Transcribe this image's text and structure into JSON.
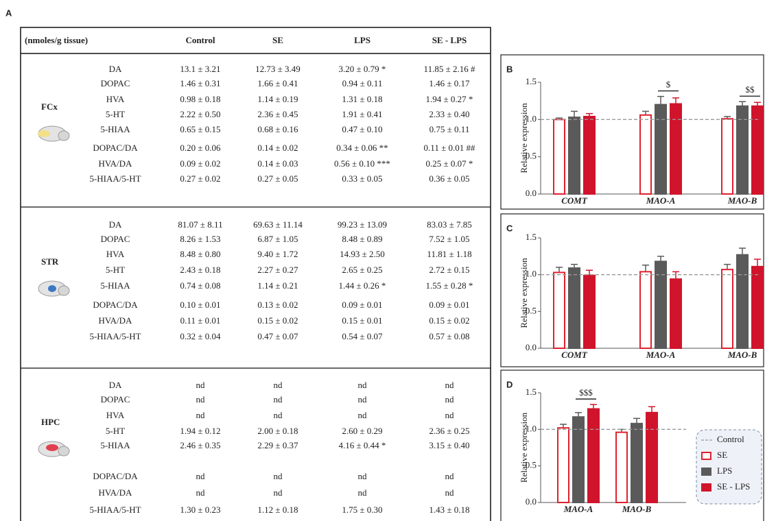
{
  "panel_label": "A",
  "table": {
    "corner": "(nmoles/g tissue)",
    "columns": [
      "Control",
      "SE",
      "LPS",
      "SE - LPS"
    ],
    "sections": [
      {
        "label": "FCx",
        "rows": [
          [
            "DA",
            "13.1 ± 3.21",
            "12.73 ± 3.49",
            "3.20 ± 0.79 *",
            "11.85 ± 2.16 #"
          ],
          [
            "DOPAC",
            "1.46 ± 0.31",
            "1.66 ± 0.41",
            "0.94 ± 0.11",
            "1.46 ± 0.17"
          ],
          [
            "HVA",
            "0.98 ± 0.18",
            "1.14 ± 0.19",
            "1.31 ± 0.18",
            "1.94 ± 0.27 *"
          ],
          [
            "5-HT",
            "2.22 ± 0.50",
            "2.36 ± 0.45",
            "1.91 ± 0.41",
            "2.33 ± 0.40"
          ],
          [
            "5-HIAA",
            "0.65 ± 0.15",
            "0.68 ± 0.16",
            "0.47 ± 0.10",
            "0.75 ± 0.11"
          ],
          [
            "DOPAC/DA",
            "0.20 ± 0.06",
            "0.14 ± 0.02",
            "0.34 ± 0.06 **",
            "0.11 ± 0.01 ##"
          ],
          [
            "HVA/DA",
            "0.09 ± 0.02",
            "0.14 ± 0.03",
            "0.56 ± 0.10 ***",
            "0.25 ± 0.07 *"
          ],
          [
            "5-HIAA/5-HT",
            "0.27 ± 0.02",
            "0.27 ± 0.05",
            "0.33 ± 0.05",
            "0.36 ± 0.05"
          ]
        ]
      },
      {
        "label": "STR",
        "rows": [
          [
            "DA",
            "81.07 ± 8.11",
            "69.63 ± 11.14",
            "99.23 ± 13.09",
            "83.03 ± 7.85"
          ],
          [
            "DOPAC",
            "8.26 ± 1.53",
            "6.87 ± 1.05",
            "8.48 ± 0.89",
            "7.52 ± 1.05"
          ],
          [
            "HVA",
            "8.48 ± 0.80",
            "9.40 ± 1.72",
            "14.93 ± 2.50",
            "11.81 ± 1.18"
          ],
          [
            "5-HT",
            "2.43 ± 0.18",
            "2.27 ± 0.27",
            "2.65 ± 0.25",
            "2.72 ± 0.15"
          ],
          [
            "5-HIAA",
            "0.74 ± 0.08",
            "1.14 ± 0.21",
            "1.44 ± 0.26 *",
            "1.55 ± 0.28 *"
          ],
          [
            "DOPAC/DA",
            "0.10 ± 0.01",
            "0.13 ± 0.02",
            "0.09 ± 0.01",
            "0.09 ± 0.01"
          ],
          [
            "HVA/DA",
            "0.11 ± 0.01",
            "0.15 ± 0.02",
            "0.15 ± 0.01",
            "0.15 ± 0.02"
          ],
          [
            "5-HIAA/5-HT",
            "0.32 ± 0.04",
            "0.47 ± 0.07",
            "0.54 ± 0.07",
            "0.57 ± 0.08"
          ]
        ]
      },
      {
        "label": "HPC",
        "rows": [
          [
            "DA",
            "nd",
            "nd",
            "nd",
            "nd"
          ],
          [
            "DOPAC",
            "nd",
            "nd",
            "nd",
            "nd"
          ],
          [
            "HVA",
            "nd",
            "nd",
            "nd",
            "nd"
          ],
          [
            "5-HT",
            "1.94 ± 0.12",
            "2.00 ± 0.18",
            "2.60 ± 0.29",
            "2.36 ± 0.25"
          ],
          [
            "5-HIAA",
            "2.46 ± 0.35",
            "2.29 ± 0.37",
            "4.16 ± 0.44 *",
            "3.15 ± 0.40"
          ],
          [
            "DOPAC/DA",
            "nd",
            "nd",
            "nd",
            "nd"
          ],
          [
            "HVA/DA",
            "nd",
            "nd",
            "nd",
            "nd"
          ],
          [
            "5-HIAA/5-HT",
            "1.30 ± 0.23",
            "1.12 ± 0.18",
            "1.75 ± 0.30",
            "1.43 ± 0.18"
          ]
        ]
      }
    ]
  },
  "chart_data": [
    {
      "type": "bar",
      "panel_label": "B",
      "y_label": "Relative expression",
      "categories": [
        "COMT",
        "MAO-A",
        "MAO-B"
      ],
      "series": [
        {
          "color": "#e0202e",
          "fill": "#ffffff",
          "values": [
            1.0,
            1.06,
            1.01
          ],
          "errors": [
            0.02,
            0.05,
            0.03
          ]
        },
        {
          "color": "#5a5a5a",
          "fill": "#5a5a5a",
          "values": [
            1.03,
            1.2,
            1.18
          ],
          "errors": [
            0.08,
            0.11,
            0.06
          ]
        },
        {
          "color": "#d0142c",
          "fill": "#d0142c",
          "values": [
            1.04,
            1.21,
            1.18
          ],
          "errors": [
            0.04,
            0.08,
            0.05
          ]
        }
      ],
      "ylim": [
        0,
        1.5
      ],
      "yticks": [
        {
          "value": 0,
          "label": "0.0"
        },
        0.5,
        {
          "value": 1,
          "label": "1.0"
        },
        1.5
      ],
      "reference_value": 1,
      "annotations": [
        {
          "text": "$"
        },
        {
          "text": "$$"
        }
      ]
    },
    {
      "type": "bar",
      "panel_label": "C",
      "y_label": "Relative expression",
      "categories": [
        "COMT",
        "MAO-A",
        "MAO-B"
      ],
      "series": [
        {
          "color": "#e0202e",
          "fill": "#ffffff",
          "values": [
            1.03,
            1.04,
            1.07
          ],
          "errors": [
            0.07,
            0.09,
            0.07
          ]
        },
        {
          "color": "#5a5a5a",
          "fill": "#5a5a5a",
          "values": [
            1.09,
            1.18,
            1.27
          ],
          "errors": [
            0.05,
            0.07,
            0.09
          ]
        },
        {
          "color": "#d0142c",
          "fill": "#d0142c",
          "values": [
            0.99,
            0.94,
            1.11
          ],
          "errors": [
            0.07,
            0.1,
            0.1
          ]
        }
      ],
      "ylim": [
        0,
        1.5
      ],
      "yticks": [
        {
          "value": 0,
          "label": "0.0"
        },
        0.5,
        {
          "value": 1,
          "label": "1.0"
        },
        1.5
      ],
      "reference_value": 1
    },
    {
      "type": "bar",
      "panel_label": "D",
      "y_label": "Relative expression",
      "categories": [
        "MAO-A",
        "MAO-B"
      ],
      "series": [
        {
          "name": "SE",
          "color": "#e0202e",
          "fill": "#ffffff",
          "values": [
            1.02,
            0.96
          ],
          "errors": [
            0.05,
            0.04
          ]
        },
        {
          "name": "LPS",
          "color": "#5a5a5a",
          "fill": "#5a5a5a",
          "values": [
            1.17,
            1.08
          ],
          "errors": [
            0.06,
            0.07
          ]
        },
        {
          "name": "SE - LPS",
          "color": "#d0142c",
          "fill": "#d0142c",
          "values": [
            1.28,
            1.23
          ],
          "errors": [
            0.06,
            0.08
          ]
        }
      ],
      "ylim": [
        0,
        1.5
      ],
      "yticks": [
        {
          "value": 0,
          "label": "0.0"
        },
        0.5,
        {
          "value": 1,
          "label": "1.0"
        },
        1.5
      ],
      "reference_value": 1,
      "reference_name": "Control",
      "legend": "right",
      "annotations": [
        {
          "text": "$$$"
        }
      ]
    }
  ]
}
